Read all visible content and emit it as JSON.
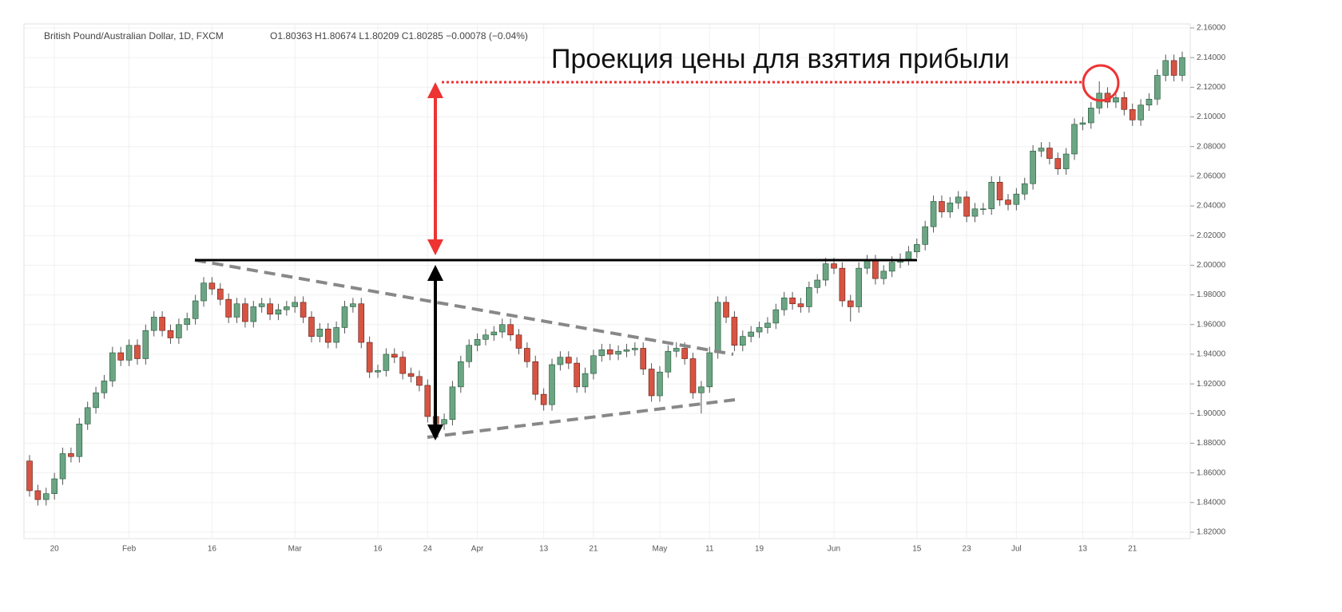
{
  "chart_data": {
    "type": "candlestick",
    "title": "British Pound/Australian Dollar, 1D, FXCM",
    "subtitle": "O1.80363 H1.80674 L1.80209 C1.80285 −0.00078 (−0.04%)",
    "annotation": "Проекция цены для взятия прибыли",
    "up_color": "#6ba583",
    "down_color": "#d75442",
    "categories": [
      null,
      null,
      null,
      "20",
      null,
      null,
      null,
      null,
      null,
      null,
      null,
      null,
      "Feb",
      null,
      null,
      null,
      null,
      null,
      null,
      null,
      null,
      null,
      "16",
      null,
      null,
      null,
      null,
      null,
      null,
      null,
      null,
      null,
      "Mar",
      null,
      null,
      null,
      null,
      null,
      null,
      null,
      null,
      null,
      "16",
      null,
      null,
      null,
      null,
      null,
      "24",
      null,
      null,
      null,
      null,
      null,
      "Apr",
      null,
      null,
      null,
      null,
      null,
      null,
      null,
      "13",
      null,
      null,
      null,
      null,
      null,
      "21",
      null,
      null,
      null,
      null,
      null,
      null,
      null,
      "May",
      null,
      null,
      null,
      null,
      null,
      "11",
      null,
      null,
      null,
      null,
      null,
      "19",
      null,
      null,
      null,
      null,
      null,
      null,
      null,
      null,
      "Jun",
      null,
      null,
      null,
      null,
      null,
      null,
      null,
      null,
      null,
      "15",
      null,
      null,
      null,
      null,
      null,
      "23",
      null,
      null,
      null,
      null,
      null,
      "Jul",
      null,
      null,
      null,
      null,
      null,
      null,
      null,
      "13",
      null,
      null,
      null,
      null,
      null,
      "21",
      null,
      null,
      null,
      null,
      null,
      null
    ],
    "open": [
      1.868,
      1.848,
      1.842,
      1.846,
      1.856,
      1.873,
      1.871,
      1.893,
      1.904,
      1.914,
      1.922,
      1.941,
      1.936,
      1.946,
      1.937,
      1.956,
      1.965,
      1.956,
      1.951,
      1.96,
      1.964,
      1.976,
      1.988,
      1.984,
      1.977,
      1.965,
      1.974,
      1.962,
      1.972,
      1.974,
      1.967,
      1.97,
      1.972,
      1.975,
      1.965,
      1.952,
      1.957,
      1.948,
      1.958,
      1.972,
      1.974,
      1.948,
      1.928,
      1.929,
      1.94,
      1.938,
      1.927,
      1.925,
      1.919,
      1.898,
      1.893,
      1.896,
      1.918,
      1.935,
      1.946,
      1.95,
      1.953,
      1.955,
      1.96,
      1.953,
      1.944,
      1.935,
      1.913,
      1.906,
      1.933,
      1.938,
      1.934,
      1.918,
      1.927,
      1.939,
      1.943,
      1.94,
      1.942,
      1.943,
      1.944,
      1.93,
      1.912,
      1.928,
      1.942,
      1.944,
      1.937,
      1.914,
      1.918,
      1.941,
      1.975,
      1.965,
      1.946,
      1.952,
      1.955,
      1.958,
      1.961,
      1.97,
      1.978,
      1.974,
      1.972,
      1.985,
      1.99,
      2.001,
      1.998,
      1.976,
      1.972,
      1.998,
      2.003,
      1.991,
      1.996,
      2.002,
      2.004,
      2.009,
      2.014,
      2.026,
      2.043,
      2.036,
      2.042,
      2.046,
      2.033,
      2.038,
      2.038,
      2.056,
      2.044,
      2.041,
      2.048,
      2.055,
      2.077,
      2.079,
      2.072,
      2.065,
      2.075,
      2.095,
      2.096,
      2.106,
      2.116,
      2.11,
      2.113,
      2.105,
      2.098,
      2.108,
      2.112,
      2.128,
      2.138,
      2.128
    ],
    "high": [
      1.872,
      1.852,
      1.85,
      1.86,
      1.877,
      1.877,
      1.897,
      1.908,
      1.918,
      1.926,
      1.945,
      1.945,
      1.95,
      1.95,
      1.96,
      1.969,
      1.969,
      1.96,
      1.964,
      1.968,
      1.98,
      1.992,
      1.992,
      1.988,
      1.981,
      1.978,
      1.978,
      1.976,
      1.978,
      1.978,
      1.974,
      1.976,
      1.979,
      1.979,
      1.969,
      1.961,
      1.961,
      1.962,
      1.976,
      1.978,
      1.978,
      1.952,
      1.933,
      1.944,
      1.944,
      1.942,
      1.931,
      1.929,
      1.923,
      1.902,
      1.9,
      1.922,
      1.939,
      1.95,
      1.954,
      1.957,
      1.959,
      1.964,
      1.964,
      1.957,
      1.948,
      1.939,
      1.917,
      1.937,
      1.942,
      1.942,
      1.938,
      1.931,
      1.943,
      1.947,
      1.947,
      1.946,
      1.947,
      1.948,
      1.948,
      1.934,
      1.932,
      1.946,
      1.948,
      1.948,
      1.941,
      1.922,
      1.945,
      1.979,
      1.979,
      1.969,
      1.956,
      1.959,
      1.962,
      1.965,
      1.974,
      1.982,
      1.982,
      1.978,
      1.989,
      1.994,
      2.005,
      2.005,
      2.002,
      1.98,
      2.002,
      2.007,
      2.007,
      2.0,
      2.006,
      2.008,
      2.013,
      2.018,
      2.03,
      2.047,
      2.047,
      2.046,
      2.05,
      2.05,
      2.042,
      2.042,
      2.06,
      2.06,
      2.048,
      2.052,
      2.059,
      2.081,
      2.083,
      2.083,
      2.076,
      2.079,
      2.099,
      2.1,
      2.11,
      2.124,
      2.12,
      2.117,
      2.117,
      2.109,
      2.112,
      2.116,
      2.132,
      2.142,
      2.142,
      2.144
    ],
    "low": [
      1.844,
      1.838,
      1.838,
      1.842,
      1.852,
      1.867,
      1.867,
      1.889,
      1.9,
      1.91,
      1.918,
      1.932,
      1.932,
      1.933,
      1.933,
      1.952,
      1.952,
      1.947,
      1.947,
      1.956,
      1.96,
      1.972,
      1.98,
      1.973,
      1.961,
      1.961,
      1.958,
      1.958,
      1.968,
      1.963,
      1.963,
      1.966,
      1.968,
      1.961,
      1.948,
      1.948,
      1.944,
      1.944,
      1.954,
      1.968,
      1.944,
      1.924,
      1.924,
      1.925,
      1.934,
      1.923,
      1.921,
      1.915,
      1.894,
      1.883,
      1.889,
      1.892,
      1.914,
      1.931,
      1.942,
      1.946,
      1.949,
      1.951,
      1.949,
      1.94,
      1.931,
      1.909,
      1.902,
      1.902,
      1.929,
      1.93,
      1.914,
      1.914,
      1.923,
      1.935,
      1.936,
      1.936,
      1.938,
      1.939,
      1.926,
      1.908,
      1.908,
      1.924,
      1.938,
      1.933,
      1.91,
      1.9,
      1.914,
      1.937,
      1.961,
      1.942,
      1.942,
      1.948,
      1.951,
      1.954,
      1.957,
      1.966,
      1.97,
      1.968,
      1.968,
      1.981,
      1.986,
      1.994,
      1.972,
      1.962,
      1.968,
      1.994,
      1.987,
      1.987,
      1.992,
      1.998,
      2.0,
      2.005,
      2.01,
      2.022,
      2.032,
      2.032,
      2.038,
      2.029,
      2.029,
      2.034,
      2.034,
      2.04,
      2.037,
      2.037,
      2.044,
      2.051,
      2.073,
      2.068,
      2.061,
      2.061,
      2.071,
      2.091,
      2.092,
      2.102,
      2.106,
      2.106,
      2.101,
      2.094,
      2.094,
      2.104,
      2.108,
      2.124,
      2.124,
      2.124
    ],
    "close": [
      1.848,
      1.842,
      1.846,
      1.856,
      1.873,
      1.871,
      1.893,
      1.904,
      1.914,
      1.922,
      1.941,
      1.936,
      1.946,
      1.937,
      1.956,
      1.965,
      1.956,
      1.951,
      1.96,
      1.964,
      1.976,
      1.988,
      1.984,
      1.977,
      1.965,
      1.974,
      1.962,
      1.972,
      1.974,
      1.967,
      1.97,
      1.972,
      1.975,
      1.965,
      1.952,
      1.957,
      1.948,
      1.958,
      1.972,
      1.974,
      1.948,
      1.928,
      1.929,
      1.94,
      1.938,
      1.927,
      1.925,
      1.919,
      1.898,
      1.893,
      1.896,
      1.918,
      1.935,
      1.946,
      1.95,
      1.953,
      1.955,
      1.96,
      1.953,
      1.944,
      1.935,
      1.913,
      1.906,
      1.933,
      1.938,
      1.934,
      1.918,
      1.927,
      1.939,
      1.943,
      1.94,
      1.942,
      1.943,
      1.944,
      1.93,
      1.912,
      1.928,
      1.942,
      1.944,
      1.937,
      1.914,
      1.918,
      1.941,
      1.975,
      1.965,
      1.946,
      1.952,
      1.955,
      1.958,
      1.961,
      1.97,
      1.978,
      1.974,
      1.972,
      1.985,
      1.99,
      2.001,
      1.998,
      1.976,
      1.972,
      1.998,
      2.003,
      1.991,
      1.996,
      2.002,
      2.004,
      2.009,
      2.014,
      2.026,
      2.043,
      2.036,
      2.042,
      2.046,
      2.033,
      2.038,
      2.038,
      2.056,
      2.044,
      2.041,
      2.048,
      2.055,
      2.077,
      2.079,
      2.072,
      2.065,
      2.075,
      2.095,
      2.096,
      2.106,
      2.116,
      2.11,
      2.113,
      2.105,
      2.098,
      2.108,
      2.112,
      2.128,
      2.138,
      2.128,
      2.14
    ],
    "ylim": [
      1.82,
      2.16
    ],
    "yticks": [
      {
        "value": 1.82,
        "label": "1.82000"
      },
      {
        "value": 1.84,
        "label": "1.84000"
      },
      {
        "value": 1.86,
        "label": "1.86000"
      },
      {
        "value": 1.88,
        "label": "1.88000"
      },
      {
        "value": 1.9,
        "label": "1.90000"
      },
      {
        "value": 1.92,
        "label": "1.92000"
      },
      {
        "value": 1.94,
        "label": "1.94000"
      },
      {
        "value": 1.96,
        "label": "1.96000"
      },
      {
        "value": 1.98,
        "label": "1.98000"
      },
      {
        "value": 2.0,
        "label": "2.00000"
      },
      {
        "value": 2.02,
        "label": "2.02000"
      },
      {
        "value": 2.04,
        "label": "2.04000"
      },
      {
        "value": 2.06,
        "label": "2.06000"
      },
      {
        "value": 2.08,
        "label": "2.08000"
      },
      {
        "value": 2.1,
        "label": "2.10000"
      },
      {
        "value": 2.12,
        "label": "2.12000"
      },
      {
        "value": 2.14,
        "label": "2.14000"
      },
      {
        "value": 2.16,
        "label": "2.16000"
      }
    ],
    "grid": true
  }
}
